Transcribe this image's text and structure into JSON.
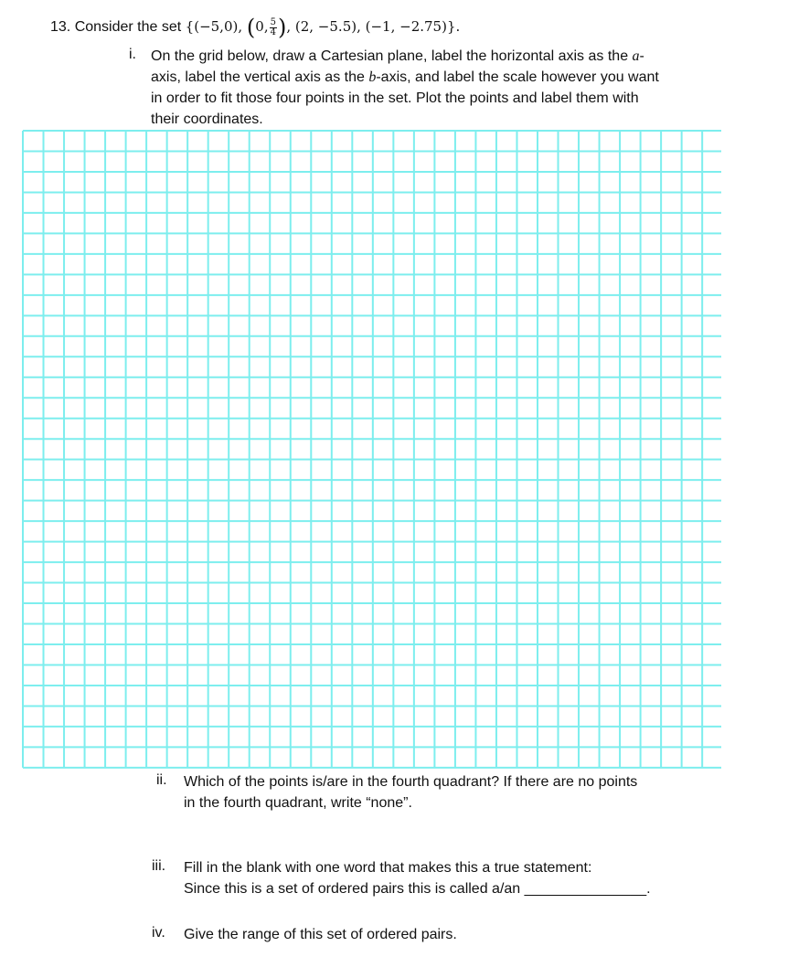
{
  "question": {
    "number": "13.",
    "intro": "Consider the set",
    "set_open": "{(−5,0),",
    "p2_open": "(",
    "p2_x": "0,",
    "p2_num": "5",
    "p2_den": "4",
    "p2_close": ")",
    "set_rest": ", (2, −5.5), (−1, −2.75)}."
  },
  "parts": [
    {
      "label": "i.",
      "lines": [
        "On the grid below, draw a Cartesian plane, label the horizontal axis as the ",
        "axis, label the vertical axis as the ",
        "in order to fit those four points in the set. Plot the points and label them with",
        "their coordinates."
      ],
      "var_a": "a",
      "dash": "-",
      "var_b": "b",
      "after_b": "-axis, and label the scale however you want"
    },
    {
      "label": "ii.",
      "lines": [
        "Which of the points is/are in the fourth quadrant? If there are no points",
        "in the fourth quadrant, write “none”."
      ]
    },
    {
      "label": "iii.",
      "lines": [
        "Fill in the blank with one word that makes this a true statement:",
        "Since this is a set of ordered pairs this is called a/an ",
        "_______________."
      ]
    },
    {
      "label": "iv.",
      "lines": [
        "Give the range of this set of ordered pairs."
      ]
    }
  ],
  "grid": {
    "columns": 33,
    "rows": 31,
    "line_color": "#7deeee"
  }
}
